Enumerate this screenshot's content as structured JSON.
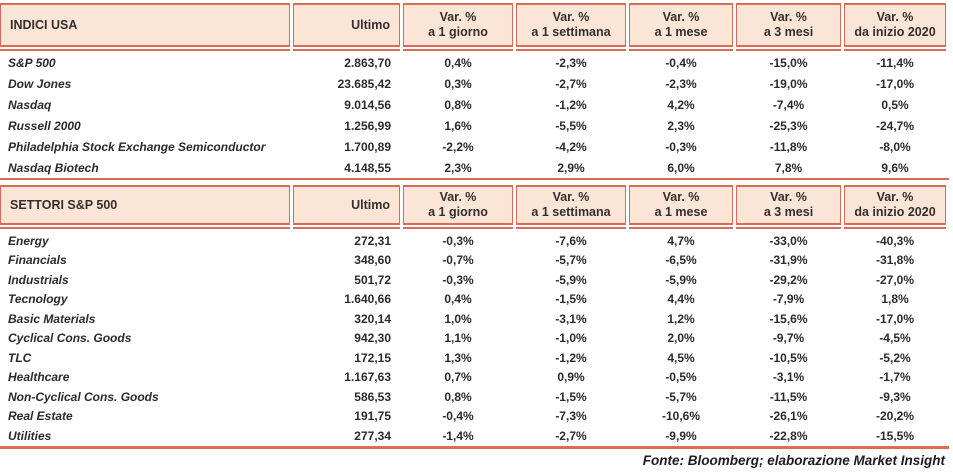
{
  "colors": {
    "accent_border": "#db6b57",
    "header_fill": "#fbe5d6",
    "text": "#2d2a2a"
  },
  "tables": [
    {
      "id": "indici-usa",
      "title": "INDICI USA",
      "ultimo_label": "Ultimo",
      "var_headers": [
        {
          "line1": "Var. %",
          "line2": "a 1 giorno"
        },
        {
          "line1": "Var. %",
          "line2": "a 1 settimana"
        },
        {
          "line1": "Var. %",
          "line2": "a 1 mese"
        },
        {
          "line1": "Var. %",
          "line2": "a 3 mesi"
        },
        {
          "line1": "Var. %",
          "line2": "da inizio 2020"
        }
      ],
      "rows": [
        {
          "name": "S&P 500",
          "ultimo": "2.863,70",
          "vars": [
            "0,4%",
            "-2,3%",
            "-0,4%",
            "-15,0%",
            "-11,4%"
          ]
        },
        {
          "name": "Dow Jones",
          "ultimo": "23.685,42",
          "vars": [
            "0,3%",
            "-2,7%",
            "-2,3%",
            "-19,0%",
            "-17,0%"
          ]
        },
        {
          "name": "Nasdaq",
          "ultimo": "9.014,56",
          "vars": [
            "0,8%",
            "-1,2%",
            "4,2%",
            "-7,4%",
            "0,5%"
          ]
        },
        {
          "name": "Russell 2000",
          "ultimo": "1.256,99",
          "vars": [
            "1,6%",
            "-5,5%",
            "2,3%",
            "-25,3%",
            "-24,7%"
          ]
        },
        {
          "name": "Philadelphia Stock Exchange Semiconductor",
          "ultimo": "1.700,89",
          "vars": [
            "-2,2%",
            "-4,2%",
            "-0,3%",
            "-11,8%",
            "-8,0%"
          ]
        },
        {
          "name": "Nasdaq Biotech",
          "ultimo": "4.148,55",
          "vars": [
            "2,3%",
            "2,9%",
            "6,0%",
            "7,8%",
            "9,6%"
          ]
        }
      ]
    },
    {
      "id": "settori-sp500",
      "title": "SETTORI S&P 500",
      "ultimo_label": "Ultimo",
      "var_headers": [
        {
          "line1": "Var. %",
          "line2": "a 1 giorno"
        },
        {
          "line1": "Var. %",
          "line2": "a 1 settimana"
        },
        {
          "line1": "Var. %",
          "line2": "a 1 mese"
        },
        {
          "line1": "Var. %",
          "line2": "a 3 mesi"
        },
        {
          "line1": "Var. %",
          "line2": "da inizio 2020"
        }
      ],
      "rows": [
        {
          "name": "Energy",
          "ultimo": "272,31",
          "vars": [
            "-0,3%",
            "-7,6%",
            "4,7%",
            "-33,0%",
            "-40,3%"
          ]
        },
        {
          "name": "Financials",
          "ultimo": "348,60",
          "vars": [
            "-0,7%",
            "-5,7%",
            "-6,5%",
            "-31,9%",
            "-31,8%"
          ]
        },
        {
          "name": "Industrials",
          "ultimo": "501,72",
          "vars": [
            "-0,3%",
            "-5,9%",
            "-5,9%",
            "-29,2%",
            "-27,0%"
          ]
        },
        {
          "name": "Tecnology",
          "ultimo": "1.640,66",
          "vars": [
            "0,4%",
            "-1,5%",
            "4,4%",
            "-7,9%",
            "1,8%"
          ]
        },
        {
          "name": "Basic Materials",
          "ultimo": "320,14",
          "vars": [
            "1,0%",
            "-3,1%",
            "1,2%",
            "-15,6%",
            "-17,0%"
          ]
        },
        {
          "name": "Cyclical Cons. Goods",
          "ultimo": "942,30",
          "vars": [
            "1,1%",
            "-1,0%",
            "2,0%",
            "-9,7%",
            "-4,5%"
          ]
        },
        {
          "name": "TLC",
          "ultimo": "172,15",
          "vars": [
            "1,3%",
            "-1,2%",
            "4,5%",
            "-10,5%",
            "-5,2%"
          ]
        },
        {
          "name": "Healthcare",
          "ultimo": "1.167,63",
          "vars": [
            "0,7%",
            "0,9%",
            "-0,5%",
            "-3,1%",
            "-1,7%"
          ]
        },
        {
          "name": "Non-Cyclical Cons. Goods",
          "ultimo": "586,53",
          "vars": [
            "0,8%",
            "-1,5%",
            "-5,7%",
            "-11,5%",
            "-9,3%"
          ]
        },
        {
          "name": "Real Estate",
          "ultimo": "191,75",
          "vars": [
            "-0,4%",
            "-7,3%",
            "-10,6%",
            "-26,1%",
            "-20,2%"
          ]
        },
        {
          "name": "Utilities",
          "ultimo": "277,34",
          "vars": [
            "-1,4%",
            "-2,7%",
            "-9,9%",
            "-22,8%",
            "-15,5%"
          ]
        }
      ]
    }
  ],
  "footer": "Fonte: Bloomberg; elaborazione Market Insight"
}
